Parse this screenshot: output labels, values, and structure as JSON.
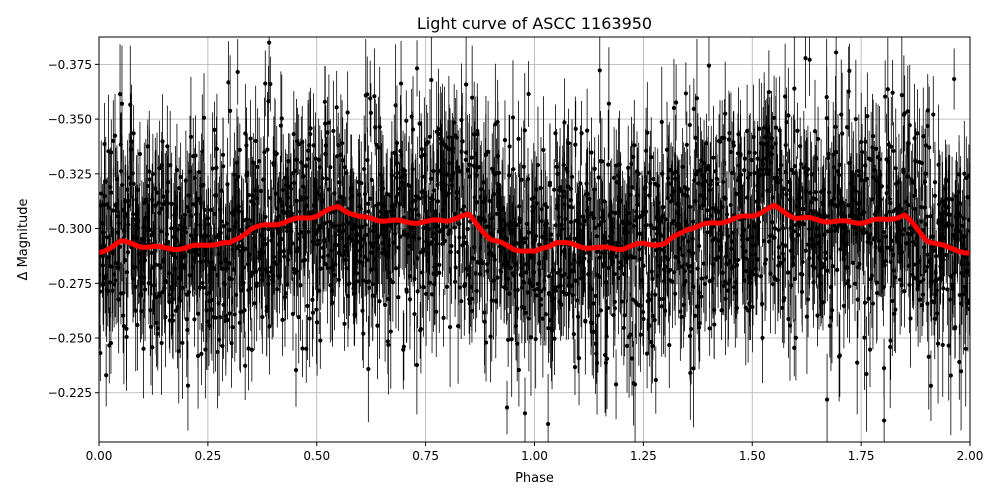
{
  "chart_data": {
    "type": "scatter",
    "title": "Light curve of ASCC 1163950",
    "xlabel": "Phase",
    "ylabel": "Δ Magnitude",
    "xlim": [
      0.0,
      2.0
    ],
    "ylim": [
      -0.2025,
      -0.3875
    ],
    "y_inverted": true,
    "grid": true,
    "x_ticks": [
      "0.00",
      "0.25",
      "0.50",
      "0.75",
      "1.00",
      "1.25",
      "1.50",
      "1.75",
      "2.00"
    ],
    "x_tick_values": [
      0.0,
      0.25,
      0.5,
      0.75,
      1.0,
      1.25,
      1.5,
      1.75,
      2.0
    ],
    "y_ticks": [
      "−0.375",
      "−0.350",
      "−0.325",
      "−0.300",
      "−0.275",
      "−0.250",
      "−0.225"
    ],
    "y_tick_values": [
      -0.375,
      -0.35,
      -0.325,
      -0.3,
      -0.275,
      -0.25,
      -0.225
    ],
    "series": [
      {
        "color": "#000000",
        "marker": "circle",
        "errorbars": true,
        "points": {
          "count": 2400,
          "mean_curve": "binned",
          "scatter_sigma": 0.026,
          "typical_error": 0.02
        }
      },
      {
        "color": "#ff0000",
        "line": true,
        "binned_curve": {
          "x": [
            0.0,
            0.05,
            0.1,
            0.15,
            0.2,
            0.25,
            0.3,
            0.35,
            0.4,
            0.45,
            0.5,
            0.55,
            0.6,
            0.65,
            0.7,
            0.75,
            0.8,
            0.85,
            0.9,
            0.95,
            1.0
          ],
          "y": [
            -0.289,
            -0.294,
            -0.292,
            -0.291,
            -0.291,
            -0.293,
            -0.293,
            -0.3,
            -0.302,
            -0.304,
            -0.306,
            -0.31,
            -0.305,
            -0.304,
            -0.303,
            -0.303,
            -0.304,
            -0.306,
            -0.295,
            -0.291,
            -0.289
          ]
        }
      }
    ]
  }
}
